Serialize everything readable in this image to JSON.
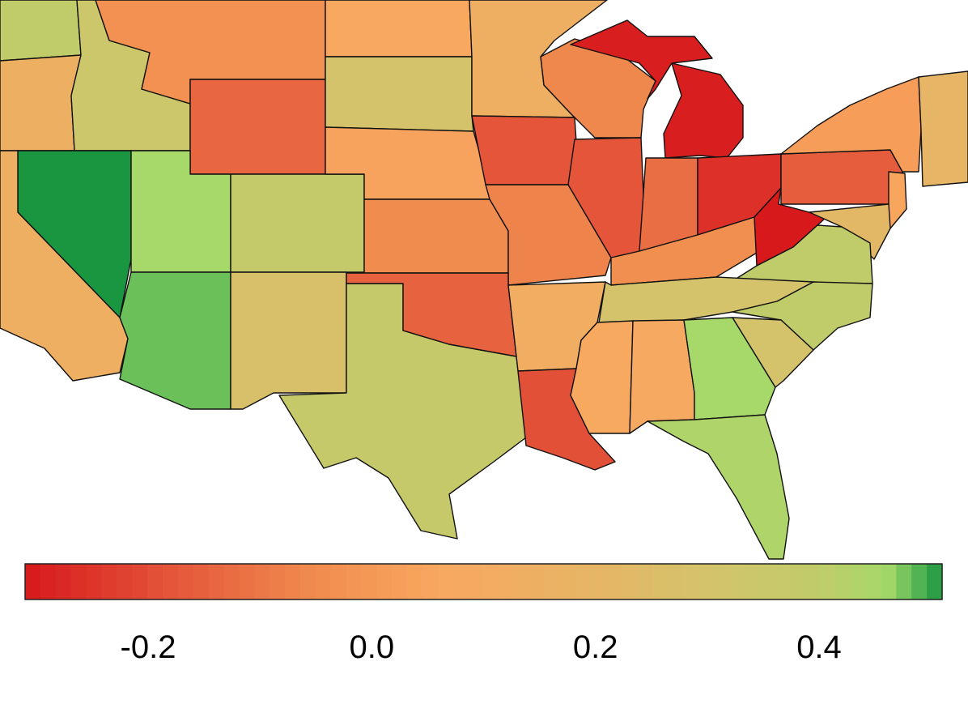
{
  "map": {
    "legend": {
      "ticks": [
        {
          "value": -0.2,
          "label": "-0.2"
        },
        {
          "value": 0.0,
          "label": "0.0"
        },
        {
          "value": 0.2,
          "label": "0.2"
        },
        {
          "value": 0.4,
          "label": "0.4"
        }
      ],
      "range": [
        -0.31,
        0.51
      ],
      "color_stops": [
        {
          "value": -0.31,
          "color": "#d7191c"
        },
        {
          "value": -0.18,
          "color": "#e4553a"
        },
        {
          "value": -0.05,
          "color": "#f08c4e"
        },
        {
          "value": 0.06,
          "color": "#f9a860"
        },
        {
          "value": 0.2,
          "color": "#e6b565"
        },
        {
          "value": 0.3,
          "color": "#d4c36b"
        },
        {
          "value": 0.4,
          "color": "#c0cc6a"
        },
        {
          "value": 0.46,
          "color": "#a6d96a"
        },
        {
          "value": 0.48,
          "color": "#6cc05a"
        },
        {
          "value": 0.51,
          "color": "#1a9641"
        }
      ]
    },
    "states": [
      {
        "name": "Washington",
        "value": 0.4
      },
      {
        "name": "Oregon",
        "value": 0.15
      },
      {
        "name": "Idaho",
        "value": 0.34
      },
      {
        "name": "Montana",
        "value": -0.03
      },
      {
        "name": "Wyoming",
        "value": -0.14
      },
      {
        "name": "North Dakota",
        "value": 0.06
      },
      {
        "name": "South Dakota",
        "value": 0.3
      },
      {
        "name": "Minnesota",
        "value": 0.14
      },
      {
        "name": "Wisconsin",
        "value": -0.06
      },
      {
        "name": "Michigan",
        "value": -0.3
      },
      {
        "name": "Nevada",
        "value": 0.51
      },
      {
        "name": "California",
        "value": 0.14
      },
      {
        "name": "Utah",
        "value": 0.46
      },
      {
        "name": "Colorado",
        "value": 0.38
      },
      {
        "name": "Nebraska",
        "value": 0.04
      },
      {
        "name": "Kansas",
        "value": -0.05
      },
      {
        "name": "Iowa",
        "value": -0.18
      },
      {
        "name": "Missouri",
        "value": -0.07
      },
      {
        "name": "Illinois",
        "value": -0.18
      },
      {
        "name": "Indiana",
        "value": -0.12
      },
      {
        "name": "Ohio",
        "value": -0.26
      },
      {
        "name": "Kentucky",
        "value": -0.04
      },
      {
        "name": "West Virginia",
        "value": -0.31
      },
      {
        "name": "Pennsylvania",
        "value": -0.16
      },
      {
        "name": "New York",
        "value": 0.02
      },
      {
        "name": "New England",
        "value": 0.2
      },
      {
        "name": "New Jersey",
        "value": 0.05
      },
      {
        "name": "Maryland",
        "value": 0.22
      },
      {
        "name": "Virginia",
        "value": 0.4
      },
      {
        "name": "Arizona",
        "value": 0.48
      },
      {
        "name": "New Mexico",
        "value": 0.28
      },
      {
        "name": "Texas",
        "value": 0.37
      },
      {
        "name": "Oklahoma",
        "value": -0.15
      },
      {
        "name": "Arkansas",
        "value": 0.12
      },
      {
        "name": "Louisiana",
        "value": -0.19
      },
      {
        "name": "Tennessee",
        "value": 0.3
      },
      {
        "name": "North Carolina",
        "value": 0.4
      },
      {
        "name": "Mississippi",
        "value": 0.07
      },
      {
        "name": "Alabama",
        "value": 0.08
      },
      {
        "name": "Georgia",
        "value": 0.46
      },
      {
        "name": "South Carolina",
        "value": 0.3
      },
      {
        "name": "Florida",
        "value": 0.44
      }
    ]
  }
}
